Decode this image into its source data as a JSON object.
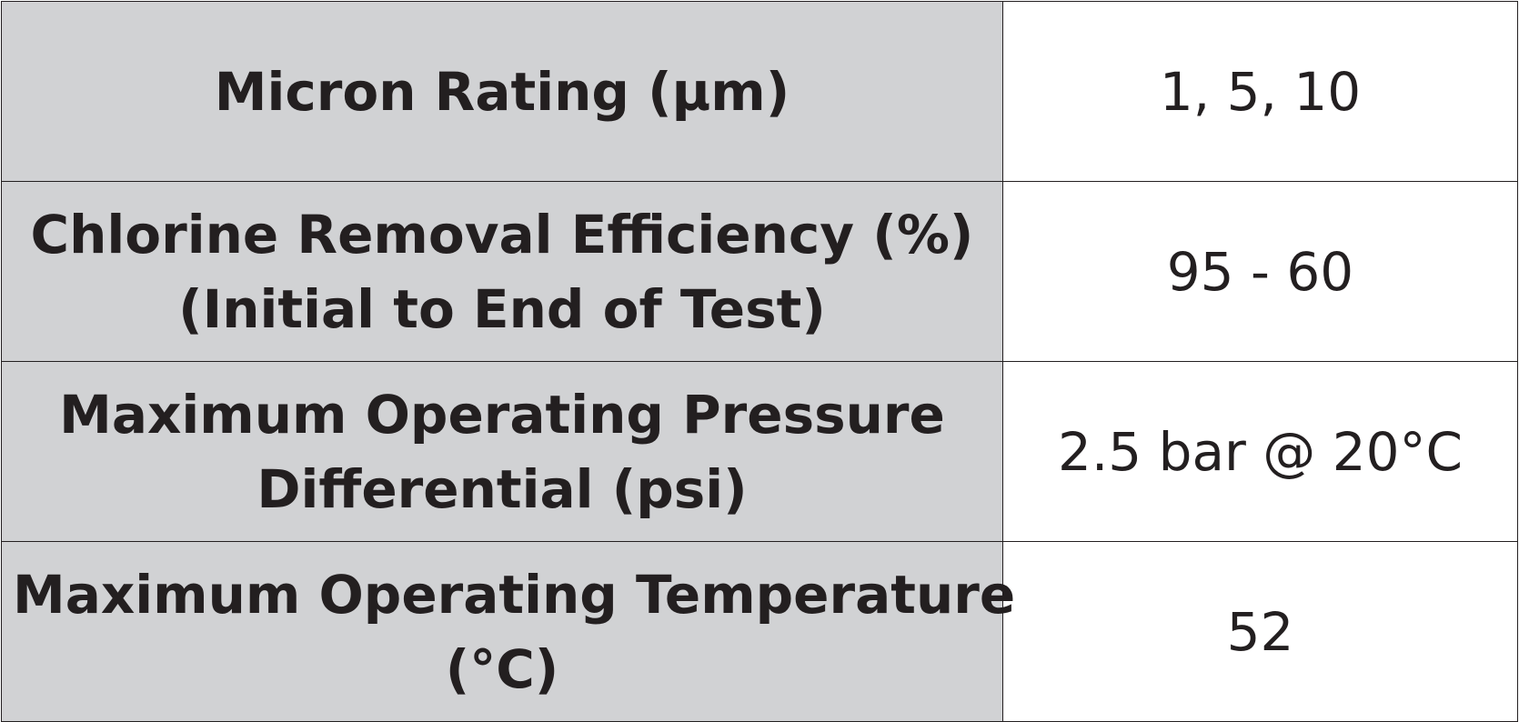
{
  "table": {
    "rows": [
      {
        "label": [
          "Micron Rating (µm)"
        ],
        "value": "1, 5, 10"
      },
      {
        "label": [
          "Chlorine Removal Efficiency (%)",
          "(Initial to End of Test)"
        ],
        "value": "95 - 60"
      },
      {
        "label": [
          "Maximum Operating Pressure",
          "Differential (psi)"
        ],
        "value": "2.5 bar @ 20°C"
      },
      {
        "label": [
          "Maximum Operating Temperature",
          "(°C)"
        ],
        "value": "52"
      }
    ]
  },
  "colors": {
    "label_background": "#d1d2d4",
    "value_background": "#ffffff",
    "text": "#231f20",
    "border": "#231f20"
  }
}
